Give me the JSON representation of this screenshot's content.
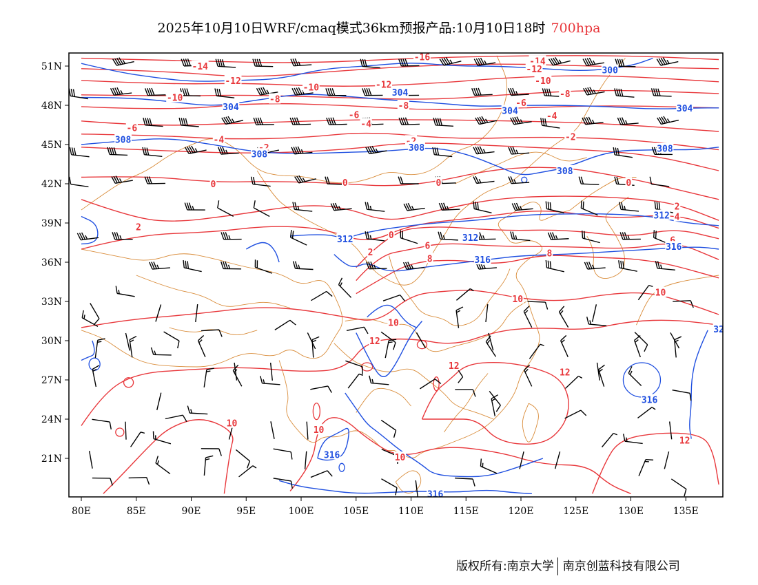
{
  "title": {
    "main": "2025年10月10日WRF/cmaq模式36km预报产品:10月10日18时",
    "level": "700hpa"
  },
  "axes": {
    "lon_labels": [
      "80E",
      "85E",
      "90E",
      "95E",
      "100E",
      "105E",
      "110E",
      "115E",
      "120E",
      "125E",
      "130E",
      "135E"
    ],
    "lat_labels": [
      "51N",
      "48N",
      "45N",
      "42N",
      "39N",
      "36N",
      "33N",
      "30N",
      "27N",
      "24N",
      "21N"
    ]
  },
  "colors": {
    "temperature": "#e8373b",
    "height": "#1f4fe0",
    "boundary": "#d98c3a",
    "wind": "#000000"
  },
  "temperature_labels": [
    {
      "text": "-16",
      "lon": 111.0,
      "lat": 51.7
    },
    {
      "text": "-14",
      "lon": 90.8,
      "lat": 51.0
    },
    {
      "text": "-14",
      "lon": 121.5,
      "lat": 51.4
    },
    {
      "text": "-12",
      "lon": 93.8,
      "lat": 49.9
    },
    {
      "text": "-12",
      "lon": 107.5,
      "lat": 49.6
    },
    {
      "text": "-12",
      "lon": 121.2,
      "lat": 50.8
    },
    {
      "text": "-10",
      "lon": 88.5,
      "lat": 48.6
    },
    {
      "text": "-10",
      "lon": 100.9,
      "lat": 49.4
    },
    {
      "text": "-10",
      "lon": 122.0,
      "lat": 49.9
    },
    {
      "text": "-8",
      "lon": 97.6,
      "lat": 48.5
    },
    {
      "text": "-8",
      "lon": 109.3,
      "lat": 48.0
    },
    {
      "text": "-8",
      "lon": 124.0,
      "lat": 48.9
    },
    {
      "text": "-6",
      "lon": 84.6,
      "lat": 46.3
    },
    {
      "text": "-6",
      "lon": 104.8,
      "lat": 47.3
    },
    {
      "text": "-6",
      "lon": 120.0,
      "lat": 48.2
    },
    {
      "text": "-4",
      "lon": 92.5,
      "lat": 45.4
    },
    {
      "text": "-4",
      "lon": 105.9,
      "lat": 46.6
    },
    {
      "text": "-4",
      "lon": 122.8,
      "lat": 47.2
    },
    {
      "text": "-2",
      "lon": 96.6,
      "lat": 44.8
    },
    {
      "text": "-2",
      "lon": 110.0,
      "lat": 45.3
    },
    {
      "text": "-2",
      "lon": 124.5,
      "lat": 45.6
    },
    {
      "text": "0",
      "lon": 92.0,
      "lat": 42.0
    },
    {
      "text": "0",
      "lon": 104.0,
      "lat": 42.1
    },
    {
      "text": "0",
      "lon": 112.5,
      "lat": 42.1
    },
    {
      "text": "0",
      "lon": 129.8,
      "lat": 42.1
    },
    {
      "text": "0",
      "lon": 108.2,
      "lat": 38.1
    },
    {
      "text": "2",
      "lon": 85.2,
      "lat": 38.7
    },
    {
      "text": "2",
      "lon": 134.2,
      "lat": 40.3
    },
    {
      "text": "2",
      "lon": 106.3,
      "lat": 36.8
    },
    {
      "text": "4",
      "lon": 134.2,
      "lat": 39.5
    },
    {
      "text": "6",
      "lon": 111.5,
      "lat": 37.3
    },
    {
      "text": "6",
      "lon": 133.8,
      "lat": 37.7
    },
    {
      "text": "8",
      "lon": 111.7,
      "lat": 36.3
    },
    {
      "text": "8",
      "lon": 122.6,
      "lat": 36.7
    },
    {
      "text": "10",
      "lon": 119.7,
      "lat": 33.2
    },
    {
      "text": "10",
      "lon": 132.7,
      "lat": 33.7
    },
    {
      "text": "10",
      "lon": 108.4,
      "lat": 31.4
    },
    {
      "text": "10",
      "lon": 93.7,
      "lat": 23.7
    },
    {
      "text": "10",
      "lon": 101.6,
      "lat": 23.2
    },
    {
      "text": "10",
      "lon": 109.0,
      "lat": 21.1
    },
    {
      "text": "12",
      "lon": 106.7,
      "lat": 30.0
    },
    {
      "text": "12",
      "lon": 113.9,
      "lat": 28.1
    },
    {
      "text": "12",
      "lon": 124.0,
      "lat": 27.6
    },
    {
      "text": "12",
      "lon": 134.9,
      "lat": 22.4
    }
  ],
  "height_labels": [
    {
      "text": "304",
      "lon": 109.0,
      "lat": 49.0
    },
    {
      "text": "304",
      "lon": 93.6,
      "lat": 47.9
    },
    {
      "text": "304",
      "lon": 119.0,
      "lat": 47.6
    },
    {
      "text": "304",
      "lon": 134.9,
      "lat": 47.8
    },
    {
      "text": "300",
      "lon": 128.1,
      "lat": 50.7
    },
    {
      "text": "308",
      "lon": 83.8,
      "lat": 45.4
    },
    {
      "text": "308",
      "lon": 96.2,
      "lat": 44.3
    },
    {
      "text": "308",
      "lon": 110.5,
      "lat": 44.8
    },
    {
      "text": "308",
      "lon": 124.0,
      "lat": 43.0
    },
    {
      "text": "308",
      "lon": 133.1,
      "lat": 44.7
    },
    {
      "text": "312",
      "lon": 104.0,
      "lat": 37.8
    },
    {
      "text": "312",
      "lon": 115.4,
      "lat": 37.9
    },
    {
      "text": "312",
      "lon": 132.8,
      "lat": 39.6
    },
    {
      "text": "316",
      "lon": 116.5,
      "lat": 36.2
    },
    {
      "text": "316",
      "lon": 133.9,
      "lat": 37.2
    },
    {
      "text": "316",
      "lon": 131.7,
      "lat": 25.5
    },
    {
      "text": "316",
      "lon": 102.8,
      "lat": 21.3
    },
    {
      "text": "316",
      "lon": 112.2,
      "lat": 18.3
    },
    {
      "text": "32",
      "lon": 138.0,
      "lat": 30.9
    }
  ],
  "footer": {
    "left": "版权所有:南京大学",
    "right": "南京创蓝科技有限公司"
  }
}
